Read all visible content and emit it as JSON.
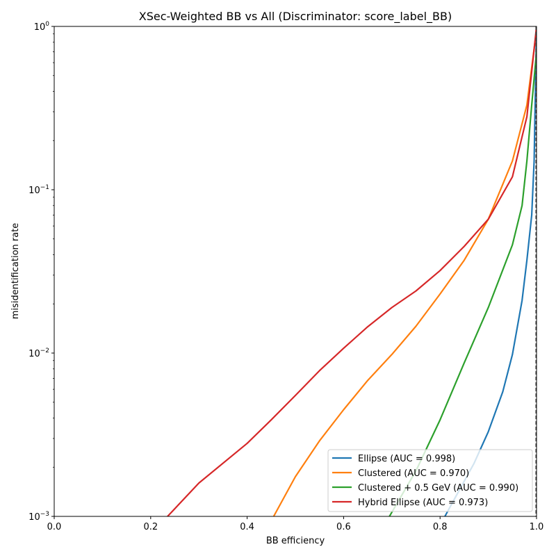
{
  "chart_data": {
    "type": "line",
    "title": "XSec-Weighted BB vs All (Discriminator: score_label_BB)",
    "xlabel": "BB efficiency",
    "ylabel": "misidentification rate",
    "xlim": [
      0,
      1
    ],
    "ylim": [
      0.001,
      1
    ],
    "yscale": "log",
    "grid": false,
    "legend_position": "lower-right",
    "x_ticks": [
      {
        "value": 0.0,
        "label": "0.0"
      },
      {
        "value": 0.2,
        "label": "0.2"
      },
      {
        "value": 0.4,
        "label": "0.4"
      },
      {
        "value": 0.6,
        "label": "0.6"
      },
      {
        "value": 0.8,
        "label": "0.8"
      },
      {
        "value": 1.0,
        "label": "1.0"
      }
    ],
    "y_ticks": [
      {
        "value": 0.001,
        "base": "10",
        "exp": "−3"
      },
      {
        "value": 0.01,
        "base": "10",
        "exp": "−2"
      },
      {
        "value": 0.1,
        "base": "10",
        "exp": "−1"
      },
      {
        "value": 1,
        "base": "10",
        "exp": "0"
      }
    ],
    "reference_line": {
      "x": 1.0,
      "style": "dashed",
      "color": "#555555"
    },
    "series": [
      {
        "name": "Ellipse (AUC = 0.998)",
        "color": "#1f77b4",
        "points": [
          [
            0.81,
            0.001
          ],
          [
            0.84,
            0.00145
          ],
          [
            0.87,
            0.0021
          ],
          [
            0.9,
            0.0033
          ],
          [
            0.93,
            0.0058
          ],
          [
            0.95,
            0.0098
          ],
          [
            0.97,
            0.021
          ],
          [
            0.98,
            0.037
          ],
          [
            0.99,
            0.07
          ],
          [
            0.995,
            0.15
          ],
          [
            1.0,
            1.0
          ]
        ]
      },
      {
        "name": "Clustered (AUC = 0.970)",
        "color": "#ff7f0e",
        "points": [
          [
            0.455,
            0.001
          ],
          [
            0.5,
            0.00175
          ],
          [
            0.55,
            0.0029
          ],
          [
            0.6,
            0.0045
          ],
          [
            0.65,
            0.0068
          ],
          [
            0.7,
            0.0098
          ],
          [
            0.75,
            0.0146
          ],
          [
            0.8,
            0.023
          ],
          [
            0.85,
            0.037
          ],
          [
            0.9,
            0.066
          ],
          [
            0.95,
            0.15
          ],
          [
            0.98,
            0.33
          ],
          [
            1.0,
            0.95
          ]
        ]
      },
      {
        "name": "Clustered + 0.5 GeV (AUC = 0.990)",
        "color": "#2ca02c",
        "points": [
          [
            0.695,
            0.001
          ],
          [
            0.75,
            0.0019
          ],
          [
            0.8,
            0.0039
          ],
          [
            0.85,
            0.0087
          ],
          [
            0.9,
            0.019
          ],
          [
            0.95,
            0.046
          ],
          [
            0.97,
            0.08
          ],
          [
            0.98,
            0.15
          ],
          [
            0.99,
            0.33
          ],
          [
            1.0,
            0.7
          ]
        ]
      },
      {
        "name": "Hybrid Ellipse (AUC = 0.973)",
        "color": "#d62728",
        "points": [
          [
            0.235,
            0.001
          ],
          [
            0.3,
            0.0016
          ],
          [
            0.4,
            0.0028
          ],
          [
            0.45,
            0.0039
          ],
          [
            0.5,
            0.0055
          ],
          [
            0.55,
            0.0078
          ],
          [
            0.6,
            0.0107
          ],
          [
            0.65,
            0.0145
          ],
          [
            0.7,
            0.019
          ],
          [
            0.75,
            0.024
          ],
          [
            0.8,
            0.032
          ],
          [
            0.85,
            0.045
          ],
          [
            0.9,
            0.066
          ],
          [
            0.95,
            0.12
          ],
          [
            0.98,
            0.28
          ],
          [
            1.0,
            1.0
          ]
        ]
      }
    ]
  }
}
